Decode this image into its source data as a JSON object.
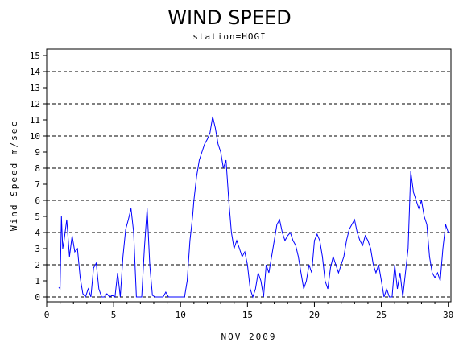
{
  "chart_data": {
    "type": "line",
    "title": "WIND SPEED",
    "subtitle": "station=HOGI",
    "xlabel": "NOV 2009",
    "ylabel": "Wind Speed m/sec",
    "xlim": [
      0,
      30.2
    ],
    "ylim": [
      -0.3,
      15.4
    ],
    "x_ticks": [
      0,
      5,
      10,
      15,
      20,
      25,
      30
    ],
    "y_ticks": [
      0,
      1,
      2,
      3,
      4,
      5,
      6,
      7,
      8,
      9,
      10,
      11,
      12,
      13,
      14,
      15
    ],
    "dashed_gridlines_y": [
      0,
      2,
      4,
      6,
      8,
      10,
      12,
      14
    ],
    "line_color": "#0000ff",
    "series": [
      {
        "name": "",
        "x": [
          0.9,
          1.0,
          1.1,
          1.2,
          1.3,
          1.5,
          1.7,
          1.9,
          2.1,
          2.3,
          2.5,
          2.7,
          2.9,
          3.1,
          3.3,
          3.5,
          3.7,
          3.9,
          4.1,
          4.3,
          4.5,
          4.7,
          4.9,
          5.1,
          5.3,
          5.5,
          5.7,
          5.9,
          6.1,
          6.3,
          6.5,
          6.7,
          6.9,
          7.1,
          7.3,
          7.5,
          7.7,
          7.9,
          8.1,
          8.3,
          8.5,
          8.7,
          8.9,
          9.1,
          9.3,
          9.5,
          9.7,
          9.9,
          10.1,
          10.3,
          10.5,
          10.7,
          10.9,
          11.0,
          11.2,
          11.4,
          11.6,
          11.8,
          12.0,
          12.2,
          12.4,
          12.6,
          12.8,
          13.0,
          13.2,
          13.4,
          13.6,
          13.8,
          14.0,
          14.2,
          14.4,
          14.6,
          14.8,
          15.0,
          15.2,
          15.4,
          15.6,
          15.8,
          16.0,
          16.2,
          16.4,
          16.6,
          16.8,
          17.0,
          17.2,
          17.4,
          17.6,
          17.8,
          18.0,
          18.2,
          18.4,
          18.6,
          18.8,
          19.0,
          19.2,
          19.4,
          19.6,
          19.8,
          20.0,
          20.2,
          20.4,
          20.6,
          20.8,
          21.0,
          21.2,
          21.4,
          21.6,
          21.8,
          22.0,
          22.2,
          22.4,
          22.6,
          22.8,
          23.0,
          23.2,
          23.4,
          23.6,
          23.8,
          24.0,
          24.2,
          24.4,
          24.6,
          24.8,
          25.0,
          25.2,
          25.4,
          25.6,
          25.8,
          26.0,
          26.2,
          26.4,
          26.6,
          26.8,
          27.0,
          27.2,
          27.4,
          27.6,
          27.8,
          28.0,
          28.2,
          28.4,
          28.6,
          28.8,
          29.0,
          29.2,
          29.4,
          29.6,
          29.8,
          30.0
        ],
        "y": [
          0.6,
          0.5,
          5.0,
          3.0,
          3.5,
          4.8,
          2.5,
          3.8,
          2.8,
          3.0,
          1.2,
          0.2,
          0.0,
          0.5,
          0.0,
          1.8,
          2.1,
          0.5,
          0.0,
          0.0,
          0.2,
          0.0,
          0.1,
          0.0,
          1.5,
          0.0,
          2.5,
          4.2,
          4.8,
          5.5,
          4.0,
          0.0,
          0.0,
          0.0,
          3.0,
          5.5,
          2.0,
          0.1,
          0.0,
          0.0,
          0.0,
          0.0,
          0.3,
          0.0,
          0.0,
          0.0,
          0.0,
          0.0,
          0.0,
          0.0,
          1.0,
          3.5,
          5.0,
          6.0,
          7.5,
          8.5,
          9.0,
          9.5,
          9.8,
          10.2,
          11.2,
          10.5,
          9.5,
          9.0,
          8.0,
          8.5,
          6.0,
          4.0,
          3.0,
          3.5,
          3.0,
          2.5,
          2.8,
          2.0,
          0.5,
          0.0,
          0.5,
          1.5,
          1.0,
          0.0,
          2.0,
          1.5,
          2.5,
          3.5,
          4.5,
          4.8,
          4.0,
          3.5,
          3.8,
          4.0,
          3.5,
          3.2,
          2.5,
          1.5,
          0.5,
          1.0,
          2.0,
          1.5,
          3.5,
          3.9,
          3.5,
          2.5,
          1.0,
          0.5,
          1.8,
          2.5,
          2.0,
          1.5,
          2.0,
          2.5,
          3.5,
          4.2,
          4.5,
          4.8,
          4.0,
          3.5,
          3.2,
          3.8,
          3.5,
          3.0,
          2.0,
          1.5,
          2.0,
          1.0,
          0.0,
          0.5,
          0.0,
          0.0,
          2.0,
          0.5,
          1.5,
          0.0,
          1.5,
          3.0,
          7.8,
          6.5,
          6.0,
          5.5,
          6.0,
          5.0,
          4.5,
          2.5,
          1.5,
          1.2,
          1.5,
          1.0,
          3.0,
          4.5,
          4.0
        ]
      }
    ]
  }
}
